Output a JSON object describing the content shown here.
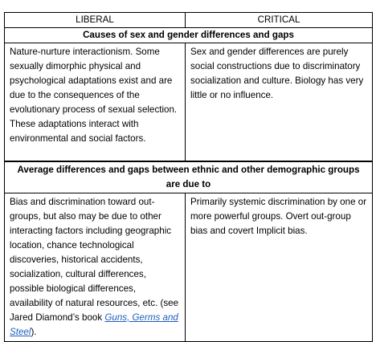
{
  "table": {
    "headers": [
      "LIBERAL",
      "CRITICAL"
    ],
    "sections": [
      {
        "title": "Causes of sex and gender differences and gaps",
        "liberal": "Nature-nurture interactionism. Some sexually dimorphic physical and psychological adaptations exist and are due to the consequences of the evolutionary process of sexual selection.  These adaptations interact with environmental and social factors.",
        "critical": "Sex and gender differences are purely social constructions due to discriminatory socialization and culture. Biology has very little or no influence."
      },
      {
        "title": "Average differences and gaps between ethnic and other demographic groups  are due to",
        "liberal": "Bias and discrimination toward out-groups, but also may be due to other interacting factors including geographic location, chance technological discoveries, historical accidents, socialization, cultural differences, possible biological differences, availability of natural resources, etc. (see Jared Diamond’s book ",
        "liberal_link": "Guns, Germs and Steel",
        "liberal_end": ").",
        "critical": "Primarily systemic discrimination by one or more powerful groups.  Overt out-group bias and covert Implicit bias."
      }
    ]
  }
}
